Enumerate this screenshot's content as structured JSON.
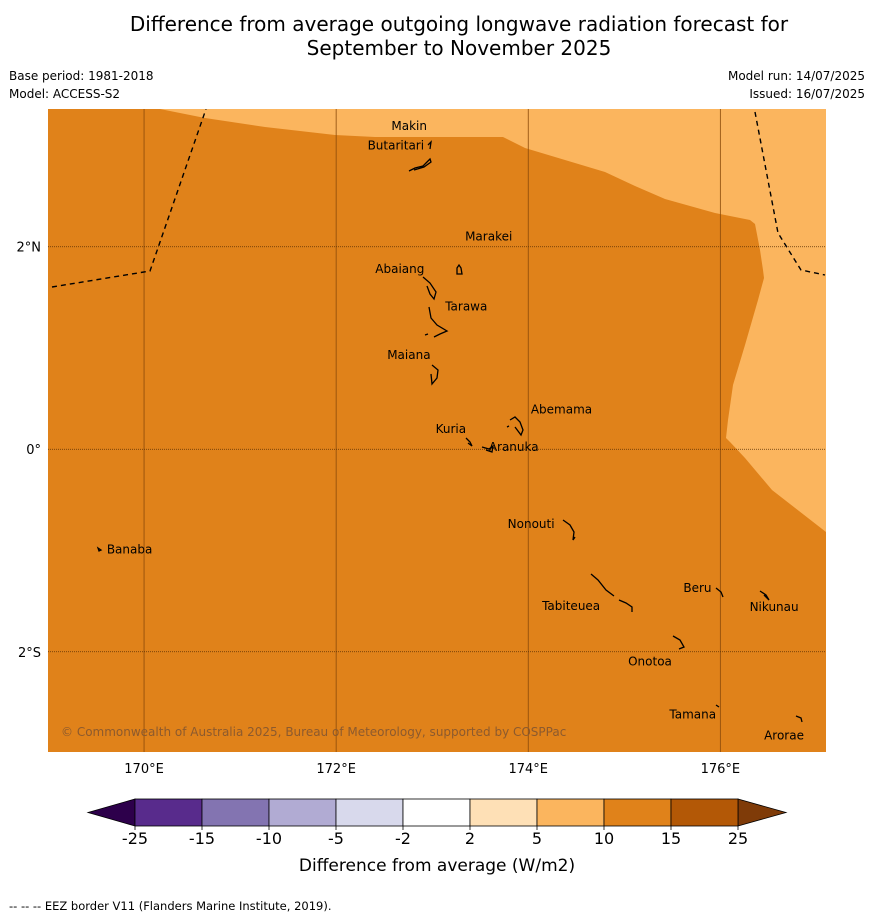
{
  "title_line1": "Difference from average outgoing longwave radiation forecast for",
  "title_line2": "September to November 2025",
  "meta": {
    "base_period": "Base period: 1981-2018",
    "model": "Model: ACCESS-S2",
    "model_run": "Model run: 14/07/2025",
    "issued": "Issued: 16/07/2025"
  },
  "map": {
    "lon_range": [
      169.0,
      177.1
    ],
    "lat_range": [
      -2.99,
      3.36
    ],
    "lon_ticks": [
      {
        "v": 170,
        "label": "170°E"
      },
      {
        "v": 172,
        "label": "172°E"
      },
      {
        "v": 174,
        "label": "174°E"
      },
      {
        "v": 176,
        "label": "176°E"
      }
    ],
    "lat_ticks": [
      {
        "v": 2,
        "label": "2°N"
      },
      {
        "v": 0,
        "label": "0°"
      },
      {
        "v": -2,
        "label": "2°S"
      }
    ],
    "fill_colors": {
      "class_10_15": "#e0821a",
      "class_5_10": "#fbb55e"
    },
    "gridlines": true,
    "islands": [
      {
        "name": "Makin",
        "lon": 172.95,
        "lat": 3.2
      },
      {
        "name": "Butaritari",
        "lon": 172.9,
        "lat": 3.05
      },
      {
        "name": "Marakei",
        "lon": 173.28,
        "lat": 2.0
      },
      {
        "name": "Abaiang",
        "lon": 172.98,
        "lat": 1.83
      },
      {
        "name": "Tarawa",
        "lon": 173.0,
        "lat": 1.4
      },
      {
        "name": "Maiana",
        "lon": 173.0,
        "lat": 0.95
      },
      {
        "name": "Abemama",
        "lon": 173.85,
        "lat": 0.4
      },
      {
        "name": "Kuria",
        "lon": 173.4,
        "lat": 0.23
      },
      {
        "name": "Aranuka",
        "lon": 173.6,
        "lat": 0.17
      },
      {
        "name": "Nonouti",
        "lon": 174.4,
        "lat": -0.65
      },
      {
        "name": "Banaba",
        "lon": 169.55,
        "lat": -0.86
      },
      {
        "name": "Tabiteuea",
        "lon": 174.8,
        "lat": -1.3
      },
      {
        "name": "Beru",
        "lon": 176.0,
        "lat": -1.33
      },
      {
        "name": "Nikunau",
        "lon": 176.45,
        "lat": -1.35
      },
      {
        "name": "Onotoa",
        "lon": 175.55,
        "lat": -1.85
      },
      {
        "name": "Tamana",
        "lon": 175.98,
        "lat": -2.5
      },
      {
        "name": "Arorae",
        "lon": 176.83,
        "lat": -2.65
      }
    ],
    "copyright": "© Commonwealth of Australia 2025, Bureau of Meteorology, supported by COSPPac"
  },
  "legend": {
    "boundaries": [
      "-25",
      "-15",
      "-10",
      "-5",
      "-2",
      "2",
      "5",
      "10",
      "15",
      "25"
    ],
    "colors": [
      "#582b8c",
      "#8374b1",
      "#b1abd3",
      "#d8d9ec",
      "#ffffff",
      "#fee0b6",
      "#fbb55e",
      "#e0821a",
      "#b35806"
    ],
    "under_color": "#2d004b",
    "over_color": "#7f3b08",
    "label": "Difference from average (W/m2)"
  },
  "footer": "--  --  -- EEZ border V11 (Flanders Marine Institute, 2019)."
}
